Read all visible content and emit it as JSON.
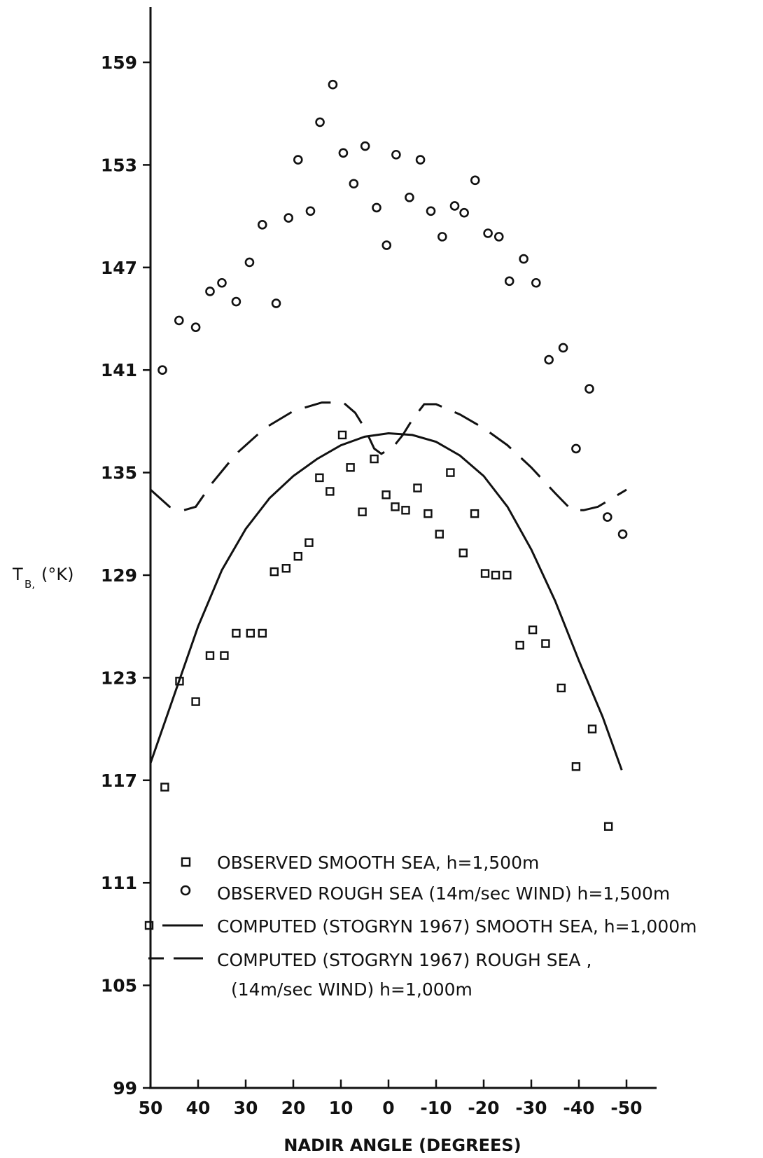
{
  "chart_data": {
    "type": "scatter",
    "title": "",
    "xlabel": "NADIR ANGLE (DEGREES)",
    "ylabel_main": "T",
    "ylabel_sub": "B,",
    "ylabel_unit": "(°K)",
    "xlim": [
      50,
      -50
    ],
    "ylim": [
      99,
      165
    ],
    "x_ticks": [
      50,
      40,
      30,
      20,
      10,
      0,
      -10,
      -20,
      -30,
      -40,
      -50
    ],
    "x_tick_labels": [
      "50",
      "40",
      "30",
      "20",
      "10",
      "0",
      "-10",
      "-20",
      "-30",
      "-40",
      "-50"
    ],
    "y_ticks": [
      99,
      105,
      111,
      117,
      123,
      129,
      135,
      141,
      147,
      153,
      159
    ],
    "y_tick_labels": [
      "99",
      "105",
      "111",
      "117",
      "123",
      "129",
      "135",
      "141",
      "147",
      "153",
      "159"
    ],
    "grid": false,
    "legend_placement": "bottom-center",
    "series": [
      {
        "name": "OBSERVED SMOOTH SEA, h=1,500m",
        "marker": "square",
        "points": [
          [
            47,
            116.6
          ],
          [
            43.9,
            122.8
          ],
          [
            40.5,
            121.6
          ],
          [
            37.5,
            124.3
          ],
          [
            34.5,
            124.3
          ],
          [
            32,
            125.6
          ],
          [
            29,
            125.6
          ],
          [
            26.5,
            125.6
          ],
          [
            24,
            129.2
          ],
          [
            21.5,
            129.4
          ],
          [
            19,
            130.1
          ],
          [
            16.7,
            130.9
          ],
          [
            14.5,
            134.7
          ],
          [
            12.3,
            133.9
          ],
          [
            9.7,
            137.2
          ],
          [
            8,
            135.3
          ],
          [
            5.5,
            132.7
          ],
          [
            3,
            135.8
          ],
          [
            0.5,
            133.7
          ],
          [
            -1.4,
            133
          ],
          [
            -3.6,
            132.8
          ],
          [
            -6.1,
            134.1
          ],
          [
            -8.3,
            132.6
          ],
          [
            -10.7,
            131.4
          ],
          [
            -13,
            135
          ],
          [
            -15.7,
            130.3
          ],
          [
            -18.1,
            132.6
          ],
          [
            -20.3,
            129.1
          ],
          [
            -22.5,
            129
          ],
          [
            -24.9,
            129
          ],
          [
            -27.6,
            124.9
          ],
          [
            -30.3,
            125.8
          ],
          [
            -33,
            125
          ],
          [
            -36.3,
            122.4
          ],
          [
            -39.4,
            117.8
          ],
          [
            -42.8,
            120
          ],
          [
            -46.2,
            114.3
          ]
        ]
      },
      {
        "name": "OBSERVED ROUGH SEA (14m/sec WIND) h=1,500m",
        "marker": "circle",
        "points": [
          [
            47.5,
            141
          ],
          [
            44,
            143.9
          ],
          [
            40.5,
            143.5
          ],
          [
            37.5,
            145.6
          ],
          [
            35,
            146.1
          ],
          [
            32,
            145
          ],
          [
            29.2,
            147.3
          ],
          [
            26.5,
            149.5
          ],
          [
            23.6,
            144.9
          ],
          [
            21,
            149.9
          ],
          [
            19,
            153.3
          ],
          [
            16.4,
            150.3
          ],
          [
            14.4,
            155.5
          ],
          [
            11.7,
            157.7
          ],
          [
            9.5,
            153.7
          ],
          [
            7.3,
            151.9
          ],
          [
            4.9,
            154.1
          ],
          [
            2.5,
            150.5
          ],
          [
            0.4,
            148.3
          ],
          [
            -1.6,
            153.6
          ],
          [
            -4.4,
            151.1
          ],
          [
            -6.7,
            153.3
          ],
          [
            -8.9,
            150.3
          ],
          [
            -11.3,
            148.8
          ],
          [
            -13.9,
            150.6
          ],
          [
            -15.9,
            150.2
          ],
          [
            -18.2,
            152.1
          ],
          [
            -20.9,
            149
          ],
          [
            -23.2,
            148.8
          ],
          [
            -25.4,
            146.2
          ],
          [
            -28.4,
            147.5
          ],
          [
            -31,
            146.1
          ],
          [
            -33.7,
            141.6
          ],
          [
            -36.7,
            142.3
          ],
          [
            -39.4,
            136.4
          ],
          [
            -42.2,
            139.9
          ],
          [
            -46,
            132.4
          ],
          [
            -49.2,
            131.4
          ]
        ]
      },
      {
        "name": "COMPUTED (STOGRYN 1967) SMOOTH SEA, h=1,000m",
        "line": "solid",
        "points": [
          [
            50,
            118
          ],
          [
            45,
            122
          ],
          [
            40,
            126
          ],
          [
            35,
            129.3
          ],
          [
            30,
            131.7
          ],
          [
            25,
            133.5
          ],
          [
            20,
            134.8
          ],
          [
            15,
            135.8
          ],
          [
            10,
            136.6
          ],
          [
            5,
            137.1
          ],
          [
            0,
            137.3
          ],
          [
            -5,
            137.2
          ],
          [
            -10,
            136.8
          ],
          [
            -15,
            136
          ],
          [
            -20,
            134.8
          ],
          [
            -25,
            133
          ],
          [
            -30,
            130.5
          ],
          [
            -35,
            127.5
          ],
          [
            -40,
            124
          ],
          [
            -45,
            120.7
          ],
          [
            -49,
            117.6
          ]
        ]
      },
      {
        "name": "COMPUTED (STOGRYN 1967) ROUGH SEA ,",
        "name_line2": "(14m/sec WIND) h=1,000m",
        "line": "dashed",
        "points": [
          [
            50,
            134
          ],
          [
            46,
            133
          ],
          [
            43,
            132.8
          ],
          [
            40.5,
            133
          ],
          [
            37,
            134.4
          ],
          [
            32,
            136.1
          ],
          [
            26,
            137.6
          ],
          [
            20,
            138.6
          ],
          [
            14,
            139.1
          ],
          [
            9.5,
            139.1
          ],
          [
            7,
            138.5
          ],
          [
            5,
            137.6
          ],
          [
            3,
            136.4
          ],
          [
            1.5,
            136.1
          ],
          [
            -1,
            136.5
          ],
          [
            -3,
            137.2
          ],
          [
            -5,
            138.1
          ],
          [
            -7.5,
            139
          ],
          [
            -10,
            139
          ],
          [
            -15,
            138.4
          ],
          [
            -20,
            137.6
          ],
          [
            -25,
            136.6
          ],
          [
            -30,
            135.3
          ],
          [
            -35,
            133.8
          ],
          [
            -38.5,
            132.8
          ],
          [
            -41,
            132.8
          ],
          [
            -44,
            133
          ],
          [
            -47,
            133.5
          ],
          [
            -50,
            134
          ]
        ]
      }
    ]
  }
}
